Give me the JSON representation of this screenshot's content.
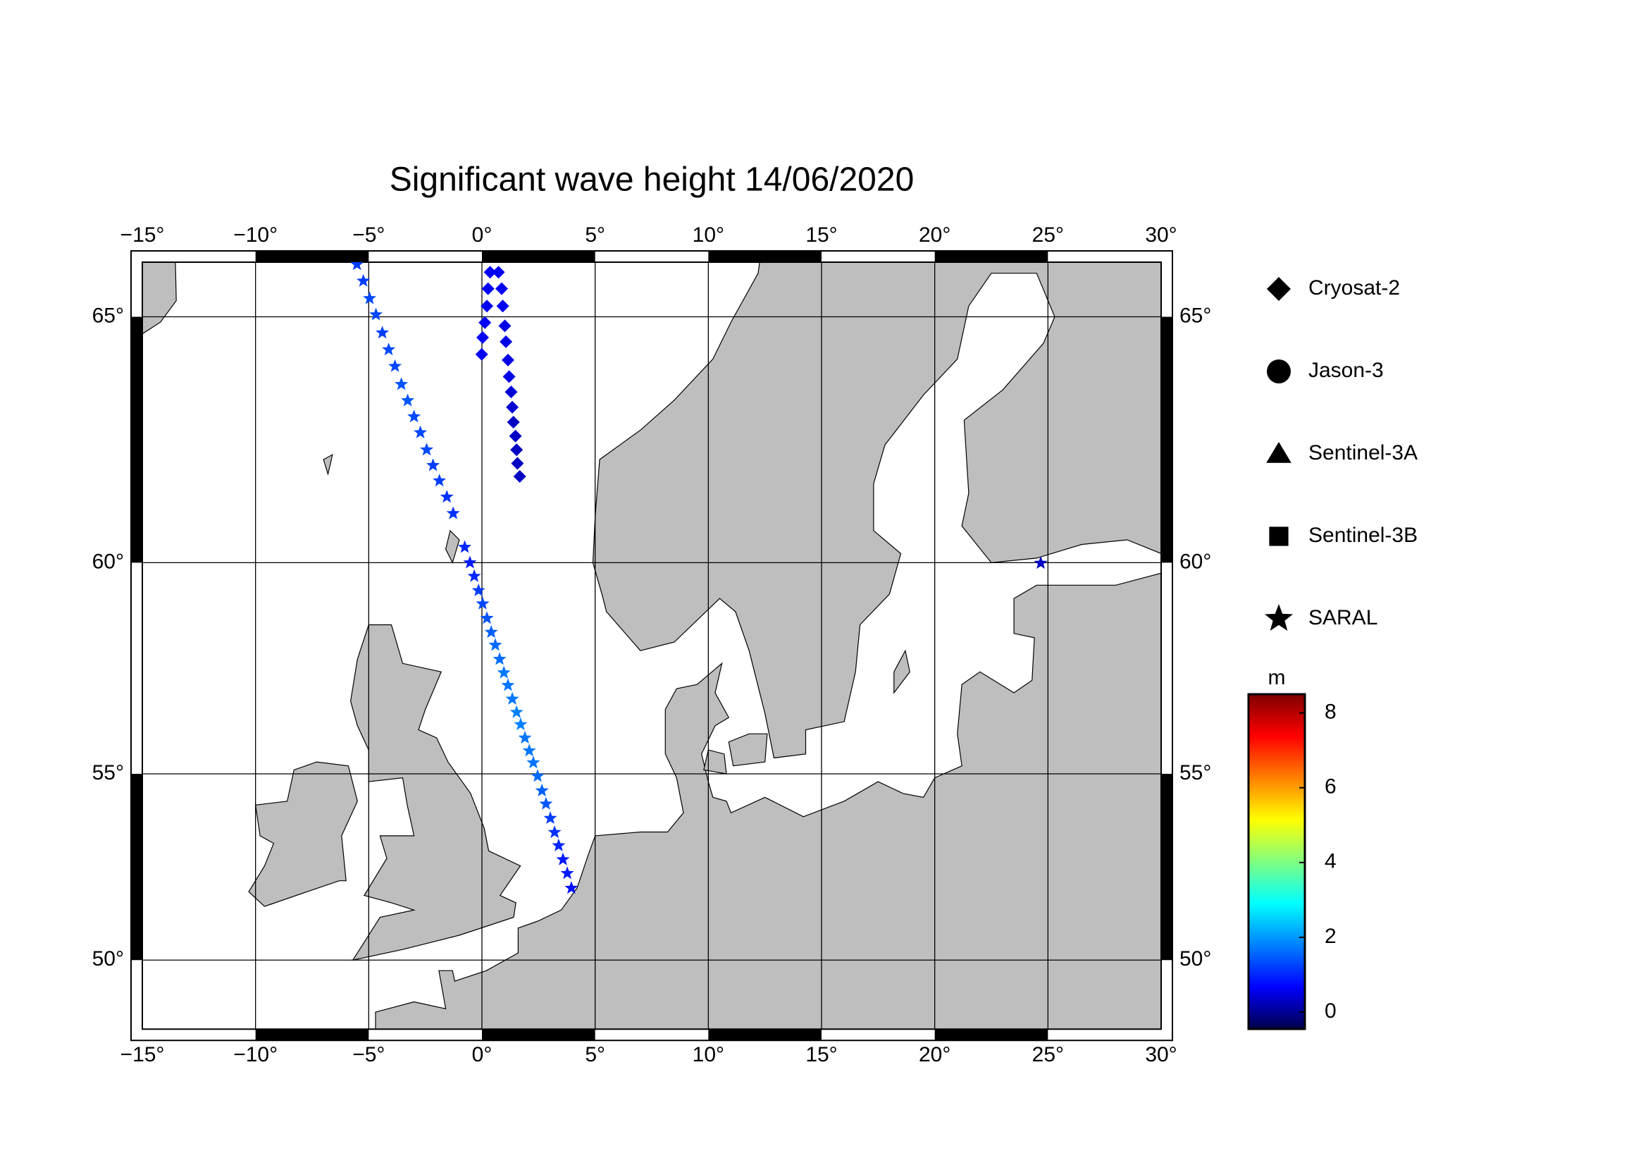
{
  "chart_data": {
    "type": "map",
    "title": "Significant wave height 14/06/2020",
    "projection": "mercator",
    "xlim": [
      -15,
      30
    ],
    "ylim": [
      48,
      66
    ],
    "xticks": [
      {
        "value": -15,
        "label": "−15°"
      },
      {
        "value": -10,
        "label": "−10°"
      },
      {
        "value": -5,
        "label": "−5°"
      },
      {
        "value": 0,
        "label": "0°"
      },
      {
        "value": 5,
        "label": "5°"
      },
      {
        "value": 10,
        "label": "10°"
      },
      {
        "value": 15,
        "label": "15°"
      },
      {
        "value": 20,
        "label": "20°"
      },
      {
        "value": 25,
        "label": "25°"
      },
      {
        "value": 30,
        "label": "30°"
      }
    ],
    "yticks": [
      {
        "value": 50,
        "label": "50°"
      },
      {
        "value": 55,
        "label": "55°"
      },
      {
        "value": 60,
        "label": "60°"
      },
      {
        "value": 65,
        "label": "65°"
      }
    ],
    "grid": true,
    "land_color": "#bebebe",
    "colormap": [
      "#00004a",
      "#0000ff",
      "#0080ff",
      "#00ffff",
      "#80ff80",
      "#ffff00",
      "#ff8000",
      "#ff0000",
      "#800000"
    ],
    "colorbar": {
      "label": "m",
      "zlim": [
        -0.45,
        8.5
      ],
      "ticks": [
        0,
        2,
        4,
        6,
        8
      ]
    },
    "series": [
      {
        "name": "Cryosat-2",
        "marker": "diamond",
        "x": [
          0.36,
          0.73,
          0.27,
          0.87,
          0.22,
          0.92,
          0.13,
          1.01,
          0.03,
          1.06,
          -0.01,
          1.15,
          1.2,
          1.29,
          1.34,
          1.39,
          1.48,
          1.53,
          1.57,
          1.67
        ],
        "y": [
          65.82,
          65.82,
          65.52,
          65.52,
          65.2,
          65.2,
          64.89,
          64.83,
          64.61,
          64.53,
          64.29,
          64.18,
          63.86,
          63.56,
          63.26,
          62.96,
          62.68,
          62.4,
          62.12,
          61.85
        ],
        "values": [
          0.6,
          0.6,
          0.6,
          0.6,
          0.6,
          0.6,
          0.6,
          0.5,
          0.6,
          0.5,
          0.6,
          0.5,
          0.5,
          0.4,
          0.4,
          0.3,
          0.3,
          0.3,
          0.3,
          0.3
        ]
      },
      {
        "name": "Jason-3",
        "marker": "circle",
        "x": [],
        "y": [],
        "values": []
      },
      {
        "name": "Sentinel-3A",
        "marker": "triangle",
        "x": [],
        "y": [],
        "values": []
      },
      {
        "name": "Sentinel-3B",
        "marker": "square",
        "x": [],
        "y": [],
        "values": []
      },
      {
        "name": "SARAL",
        "marker": "star",
        "x": [
          -5.52,
          -5.24,
          -4.96,
          -4.68,
          -4.4,
          -4.12,
          -3.84,
          -3.56,
          -3.28,
          -3.0,
          -2.72,
          -2.44,
          -2.16,
          -1.88,
          -1.55,
          -1.27,
          -0.76,
          -0.53,
          -0.34,
          -0.15,
          0.03,
          0.22,
          0.41,
          0.59,
          0.78,
          0.97,
          1.15,
          1.34,
          1.53,
          1.71,
          1.9,
          2.09,
          2.27,
          2.46,
          2.65,
          2.83,
          3.02,
          3.21,
          3.39,
          3.58,
          3.77,
          3.95,
          24.68
        ],
        "y": [
          65.96,
          65.66,
          65.34,
          65.04,
          64.7,
          64.38,
          64.06,
          63.71,
          63.39,
          63.07,
          62.75,
          62.4,
          62.08,
          61.76,
          61.42,
          61.07,
          60.34,
          60.0,
          59.7,
          59.38,
          59.08,
          58.75,
          58.43,
          58.13,
          57.8,
          57.48,
          57.18,
          56.85,
          56.53,
          56.23,
          55.9,
          55.58,
          55.28,
          54.94,
          54.57,
          54.23,
          53.86,
          53.49,
          53.14,
          52.77,
          52.4,
          52.0,
          59.99
        ],
        "values": [
          1.2,
          1.2,
          1.3,
          1.3,
          1.2,
          1.3,
          1.3,
          1.4,
          1.4,
          1.3,
          1.3,
          1.3,
          1.2,
          1.2,
          1.1,
          1.1,
          1.0,
          0.9,
          1.0,
          1.2,
          1.3,
          1.4,
          1.5,
          1.6,
          1.6,
          1.7,
          1.7,
          1.7,
          1.8,
          1.8,
          1.7,
          1.7,
          1.7,
          1.6,
          1.5,
          1.4,
          1.2,
          1.1,
          1.0,
          0.9,
          0.9,
          0.8,
          0.3
        ]
      }
    ]
  }
}
